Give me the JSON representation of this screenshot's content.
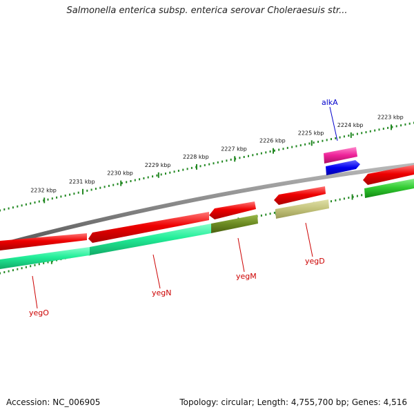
{
  "title": "Salmonella enterica subsp. enterica serovar Choleraesuis str...",
  "footer": {
    "accession": "Accession: NC_006905",
    "topology": "Topology: circular; Length: 4,755,700 bp; Genes: 4,516"
  },
  "ticks": [
    {
      "label": "2223 kbp",
      "t": 0.945
    },
    {
      "label": "2224 kbp",
      "t": 0.848
    },
    {
      "label": "2225 kbp",
      "t": 0.753
    },
    {
      "label": "2226 kbp",
      "t": 0.66
    },
    {
      "label": "2227 kbp",
      "t": 0.567
    },
    {
      "label": "2228 kbp",
      "t": 0.475
    },
    {
      "label": "2229 kbp",
      "t": 0.383
    },
    {
      "label": "2230 kbp",
      "t": 0.292
    },
    {
      "label": "2231 kbp",
      "t": 0.2
    },
    {
      "label": "2232 kbp",
      "t": 0.107
    }
  ],
  "genes": [
    {
      "name": "yegO",
      "label_color": "#cc0000"
    },
    {
      "name": "yegN",
      "label_color": "#cc0000"
    },
    {
      "name": "yegM",
      "label_color": "#cc0000"
    },
    {
      "name": "yegD",
      "label_color": "#cc0000"
    },
    {
      "name": "alkA",
      "label_color": "#0000cc"
    }
  ],
  "colors": {
    "backbone": "#888888",
    "cds": "#ee0000",
    "teal": "#22ee99",
    "olive": "#6b8a22",
    "khaki": "#c2c27a",
    "green": "#33cc33",
    "magenta": "#ee2299",
    "blue": "#0000ee",
    "tick": "#228822"
  }
}
